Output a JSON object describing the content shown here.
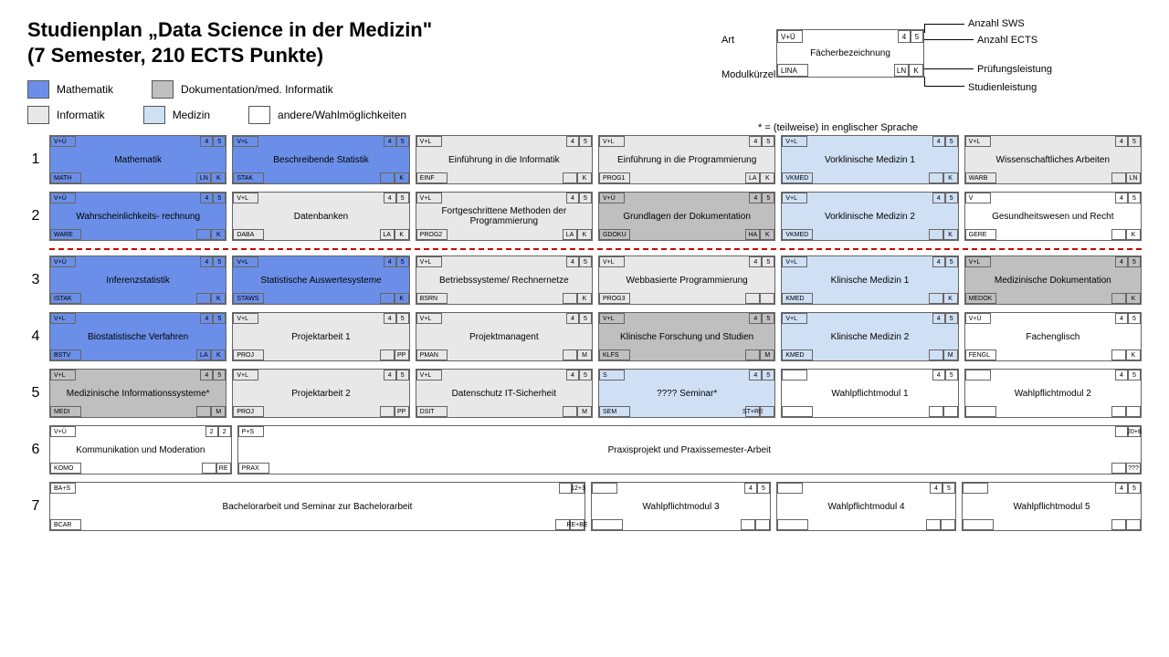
{
  "title": "Studienplan „Data Science in der Medizin\"",
  "subtitle": "(7 Semester, 210 ECTS Punkte)",
  "colors": {
    "mathematik": "#6b8fe8",
    "informatik": "#e8e8e8",
    "dokumentation": "#bfbfbf",
    "medizin": "#cfe0f5",
    "andere": "#ffffff",
    "border": "#666666"
  },
  "legend": [
    {
      "key": "mathematik",
      "label": "Mathematik"
    },
    {
      "key": "dokumentation",
      "label": "Dokumentation/med. Informatik"
    },
    {
      "key": "informatik",
      "label": "Informatik"
    },
    {
      "key": "medizin",
      "label": "Medizin"
    },
    {
      "key": "andere",
      "label": "andere/Wahlmöglichkeiten"
    }
  ],
  "legendBox": {
    "art": "Art",
    "kuerzel": "Modulkürzel",
    "sws": "Anzahl SWS",
    "ects": "Anzahl ECTS",
    "pl": "Prüfungsleistung",
    "sl": "Studienleistung",
    "sample": {
      "art": "V+Ü",
      "sws": "4",
      "ects": "5",
      "title": "Fächerbezeichnung",
      "code": "LINA",
      "sl": "LN",
      "pl": "K"
    }
  },
  "footnote": "* = (teilweise) in englischer Sprache",
  "rows": [
    {
      "n": "1",
      "modules": [
        {
          "c": "mathematik",
          "art": "V+Ü",
          "sws": "4",
          "ects": "5",
          "title": "Mathematik",
          "code": "MATH",
          "sl": "LN",
          "pl": "K"
        },
        {
          "c": "mathematik",
          "art": "V+L",
          "sws": "4",
          "ects": "5",
          "title": "Beschreibende Statistik",
          "code": "STAK",
          "sl": "",
          "pl": "K"
        },
        {
          "c": "informatik",
          "art": "V+L",
          "sws": "4",
          "ects": "5",
          "title": "Einführung in die Informatik",
          "code": "EINF",
          "sl": "",
          "pl": "K"
        },
        {
          "c": "informatik",
          "art": "V+L",
          "sws": "4",
          "ects": "5",
          "title": "Einführung in die Programmierung",
          "code": "PROG1",
          "sl": "LA",
          "pl": "K"
        },
        {
          "c": "medizin",
          "art": "V+L",
          "sws": "4",
          "ects": "5",
          "title": "Vorklinische Medizin 1",
          "code": "VKMED",
          "sl": "",
          "pl": "K"
        },
        {
          "c": "informatik",
          "art": "V+L",
          "sws": "4",
          "ects": "5",
          "title": "Wissenschaftliches Arbeiten",
          "code": "WARB",
          "sl": "",
          "pl": "LN"
        }
      ]
    },
    {
      "n": "2",
      "modules": [
        {
          "c": "mathematik",
          "art": "V+Ü",
          "sws": "4",
          "ects": "5",
          "title": "Wahrscheinlichkeits-\nrechnung",
          "code": "WARE",
          "sl": "",
          "pl": "K"
        },
        {
          "c": "informatik",
          "art": "V+L",
          "sws": "4",
          "ects": "5",
          "title": "Datenbanken",
          "code": "DABA",
          "sl": "LA",
          "pl": "K"
        },
        {
          "c": "informatik",
          "art": "V+L",
          "sws": "4",
          "ects": "5",
          "title": "Fortgeschrittene Methoden der Programmierung",
          "code": "PROG2",
          "sl": "LA",
          "pl": "K"
        },
        {
          "c": "dokumentation",
          "art": "V+Ü",
          "sws": "4",
          "ects": "5",
          "title": "Grundlagen der Dokumentation",
          "code": "GDOKU",
          "sl": "HA",
          "pl": "K"
        },
        {
          "c": "medizin",
          "art": "V+L",
          "sws": "4",
          "ects": "5",
          "title": "Vorklinische Medizin 2",
          "code": "VKMED",
          "sl": "",
          "pl": "K"
        },
        {
          "c": "andere",
          "art": "V",
          "sws": "4",
          "ects": "5",
          "title": "Gesundheitswesen und Recht",
          "code": "GERE",
          "sl": "",
          "pl": "K"
        }
      ]
    },
    {
      "n": "3",
      "dashedBefore": true,
      "modules": [
        {
          "c": "mathematik",
          "art": "V+Ü",
          "sws": "4",
          "ects": "5",
          "title": "Inferenzstatistik",
          "code": "ISTAK",
          "sl": "",
          "pl": "K"
        },
        {
          "c": "mathematik",
          "art": "V+L",
          "sws": "4",
          "ects": "5",
          "title": "Statistische Auswertesysteme",
          "code": "STAWS",
          "sl": "",
          "pl": "K"
        },
        {
          "c": "informatik",
          "art": "V+L",
          "sws": "4",
          "ects": "5",
          "title": "Betriebssysteme/ Rechnernetze",
          "code": "BSRN",
          "sl": "",
          "pl": "K"
        },
        {
          "c": "informatik",
          "art": "V+L",
          "sws": "4",
          "ects": "5",
          "title": "Webbasierte Programmierung",
          "code": "PROG3",
          "sl": "",
          "pl": ""
        },
        {
          "c": "medizin",
          "art": "V+L",
          "sws": "4",
          "ects": "5",
          "title": "Klinische Medizin 1",
          "code": "KMED",
          "sl": "",
          "pl": "K"
        },
        {
          "c": "dokumentation",
          "art": "V+L",
          "sws": "4",
          "ects": "5",
          "title": "Medizinische Dokumentation",
          "code": "MEDOK",
          "sl": "",
          "pl": "K"
        }
      ]
    },
    {
      "n": "4",
      "modules": [
        {
          "c": "mathematik",
          "art": "V+L",
          "sws": "4",
          "ects": "5",
          "title": "Biostatistische Verfahren",
          "code": "BSTV",
          "sl": "LA",
          "pl": "K"
        },
        {
          "c": "informatik",
          "art": "V+L",
          "sws": "4",
          "ects": "5",
          "title": "Projektarbeit 1",
          "code": "PROJ",
          "sl": "",
          "pl": "PP"
        },
        {
          "c": "informatik",
          "art": "V+L",
          "sws": "4",
          "ects": "5",
          "title": "Projektmanagent",
          "code": "PMAN",
          "sl": "",
          "pl": "M"
        },
        {
          "c": "dokumentation",
          "art": "V+L",
          "sws": "4",
          "ects": "5",
          "title": "Klinische Forschung und Studien",
          "code": "KLFS",
          "sl": "",
          "pl": "M"
        },
        {
          "c": "medizin",
          "art": "V+L",
          "sws": "4",
          "ects": "5",
          "title": "Klinische Medizin 2",
          "code": "KMED",
          "sl": "",
          "pl": "M"
        },
        {
          "c": "andere",
          "art": "V+Ü",
          "sws": "4",
          "ects": "5",
          "title": "Fachenglisch",
          "code": "FENGL",
          "sl": "",
          "pl": "K"
        }
      ]
    },
    {
      "n": "5",
      "modules": [
        {
          "c": "dokumentation",
          "art": "V+L",
          "sws": "4",
          "ects": "5",
          "title": "Medizinische Informationssysteme*",
          "code": "MEDI",
          "sl": "",
          "pl": "M"
        },
        {
          "c": "informatik",
          "art": "V+L",
          "sws": "4",
          "ects": "5",
          "title": "Projektarbeit 2",
          "code": "PROJ",
          "sl": "",
          "pl": "PP"
        },
        {
          "c": "informatik",
          "art": "V+L",
          "sws": "4",
          "ects": "5",
          "title": "Datenschutz IT-Sicherheit",
          "code": "DSIT",
          "sl": "",
          "pl": "M"
        },
        {
          "c": "medizin",
          "art": "S",
          "sws": "4",
          "ects": "5",
          "title": "???? Seminar*",
          "code": "SEM",
          "sl": "ST+RE",
          "pl": ""
        },
        {
          "c": "andere",
          "art": "",
          "sws": "4",
          "ects": "5",
          "title": "Wahlpflichtmodul 1",
          "code": "",
          "sl": "",
          "pl": ""
        },
        {
          "c": "andere",
          "art": "",
          "sws": "4",
          "ects": "5",
          "title": "Wahlpflichtmodul 2",
          "code": "",
          "sl": "",
          "pl": ""
        }
      ]
    },
    {
      "n": "6",
      "modules": [
        {
          "c": "andere",
          "art": "V+Ü",
          "sws": "2",
          "ects": "2",
          "title": "Kommunikation und Moderation",
          "code": "KOMO",
          "sl": "",
          "pl": "RE",
          "flex": 1
        },
        {
          "c": "andere",
          "art": "P+S",
          "sws": "",
          "ects": "20+8",
          "title": "Praxisprojekt und Praxissemester-Arbeit",
          "code": "PRAX",
          "sl": "",
          "pl": "???",
          "flex": 5
        }
      ]
    },
    {
      "n": "7",
      "modules": [
        {
          "c": "andere",
          "art": "BA+S",
          "sws": "",
          "ects": "12+3",
          "title": "Bachelorarbeit und Seminar zur Bachelorarbeit",
          "code": "BCAR",
          "sl": "",
          "pl": "RE+BE",
          "flex": 3
        },
        {
          "c": "andere",
          "art": "",
          "sws": "4",
          "ects": "5",
          "title": "Wahlpflichtmodul 3",
          "code": "",
          "sl": "",
          "pl": "",
          "flex": 1
        },
        {
          "c": "andere",
          "art": "",
          "sws": "4",
          "ects": "5",
          "title": "Wahlpflichtmodul 4",
          "code": "",
          "sl": "",
          "pl": "",
          "flex": 1
        },
        {
          "c": "andere",
          "art": "",
          "sws": "4",
          "ects": "5",
          "title": "Wahlpflichtmodul 5",
          "code": "",
          "sl": "",
          "pl": "",
          "flex": 1
        }
      ]
    }
  ]
}
